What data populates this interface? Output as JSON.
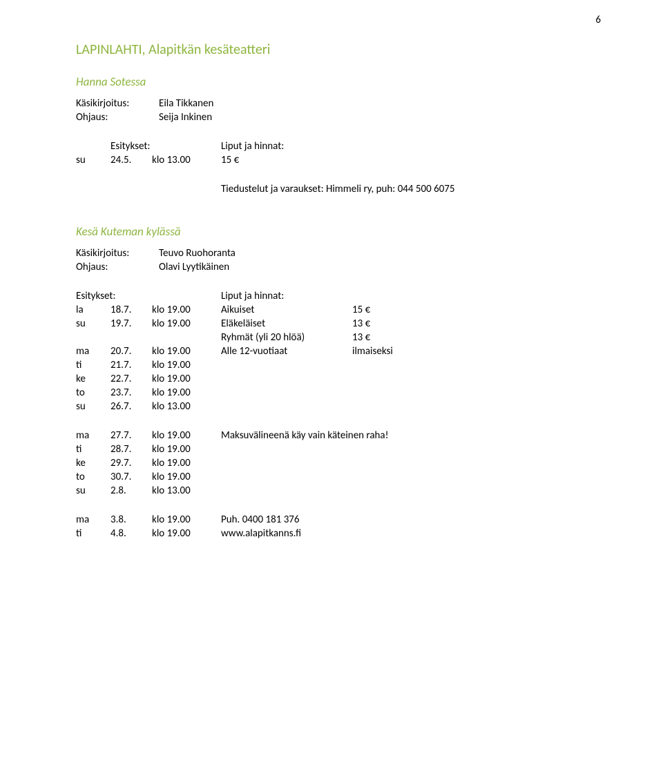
{
  "page_number": "6",
  "section1": {
    "heading": "LAPINLAHTI, Alapitkän kesäteatteri",
    "subheading": "Hanna Sotessa",
    "credits": [
      {
        "label": "Käsikirjoitus:",
        "value": "Eila Tikkanen"
      },
      {
        "label": "Ohjaus:",
        "value": "Seija Inkinen"
      }
    ],
    "esitykset_label": "Esitykset:",
    "liput_label": "Liput ja hinnat:",
    "row": {
      "day": "su",
      "date": "24.5.",
      "time": "klo 13.00",
      "price": "15 €"
    },
    "tiedustelut": "Tiedustelut ja varaukset: Himmeli ry, puh: 044 500 6075"
  },
  "section2": {
    "subheading": "Kesä Kuteman kylässä",
    "credits": [
      {
        "label": "Käsikirjoitus:",
        "value": "Teuvo Ruohoranta"
      },
      {
        "label": "Ohjaus:",
        "value": "Olavi Lyytikäinen"
      }
    ],
    "esitykset_label": "Esitykset:",
    "liput_label": "Liput ja hinnat:",
    "group1": [
      {
        "day": "la",
        "date": "18.7.",
        "time": "klo 19.00",
        "plabel": "Aikuiset",
        "pval": "15 €"
      },
      {
        "day": "su",
        "date": "19.7.",
        "time": "klo 19.00",
        "plabel": "Eläkeläiset",
        "pval": "13 €"
      },
      {
        "day": "",
        "date": "",
        "time": "",
        "plabel": "Ryhmät (yli 20 hlöä)",
        "pval": "13 €"
      },
      {
        "day": "ma",
        "date": "20.7.",
        "time": "klo 19.00",
        "plabel": "Alle 12-vuotiaat",
        "pval": "ilmaiseksi"
      },
      {
        "day": "ti",
        "date": "21.7.",
        "time": "klo 19.00",
        "plabel": "",
        "pval": ""
      },
      {
        "day": "ke",
        "date": "22.7.",
        "time": "klo 19.00",
        "plabel": "",
        "pval": ""
      },
      {
        "day": "to",
        "date": "23.7.",
        "time": "klo 19.00",
        "plabel": "",
        "pval": ""
      },
      {
        "day": "su",
        "date": "26.7.",
        "time": "klo 13.00",
        "plabel": "",
        "pval": ""
      }
    ],
    "group2": [
      {
        "day": "ma",
        "date": "27.7.",
        "time": "klo 19.00",
        "plabel": "Maksuvälineenä käy vain käteinen raha!",
        "pval": ""
      },
      {
        "day": "ti",
        "date": "28.7.",
        "time": "klo 19.00",
        "plabel": "",
        "pval": ""
      },
      {
        "day": "ke",
        "date": "29.7.",
        "time": "klo 19.00",
        "plabel": "",
        "pval": ""
      },
      {
        "day": "to",
        "date": "30.7.",
        "time": "klo 19.00",
        "plabel": "",
        "pval": ""
      },
      {
        "day": "su",
        "date": "2.8.",
        "time": "klo 13.00",
        "plabel": "",
        "pval": ""
      }
    ],
    "group3": [
      {
        "day": "ma",
        "date": "3.8.",
        "time": "klo 19.00",
        "plabel": "Puh. 0400 181 376",
        "pval": ""
      },
      {
        "day": "ti",
        "date": "4.8.",
        "time": "klo 19.00",
        "plabel": "www.alapitkanns.fi",
        "pval": ""
      }
    ]
  }
}
